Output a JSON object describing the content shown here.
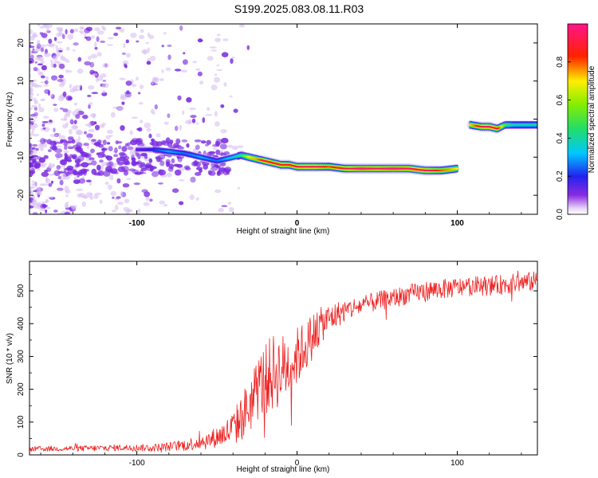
{
  "title": "S199.2025.083.08.11.R03",
  "colors": {
    "snr_line": "#ee2222",
    "spectrogram_noise": "#7a2be0",
    "spectrogram_noise_light": "#d8c0f2"
  },
  "colorbar": {
    "label": "Normalized spectral amplitude",
    "range": [
      0,
      1
    ],
    "ticks": [
      "0.0",
      "0.2",
      "0.4",
      "0.6",
      "0.8"
    ],
    "colormap": "rainbow (purple → blue → cyan → green → yellow → red → magenta)"
  },
  "chart_data": [
    {
      "type": "heatmap",
      "title": "S199.2025.083.08.11.R03",
      "xlabel": "Height of straight line (km)",
      "ylabel": "Frequency (Hz)",
      "xlim": [
        -167,
        150
      ],
      "ylim": [
        -25,
        25
      ],
      "xticks": [
        -100,
        0,
        100
      ],
      "xtick_labels": [
        "-100",
        "0",
        "100"
      ],
      "yticks": [
        -20,
        -10,
        0,
        10,
        20
      ],
      "ytick_labels": [
        "-20",
        "-10",
        "0",
        "10",
        "20"
      ],
      "grid": false,
      "ridge": {
        "description": "dominant frequency trace, normalized amplitude",
        "segments": [
          {
            "x": [
              -100,
              -90,
              -80,
              -70,
              -60,
              -50,
              -40,
              -35,
              -30,
              -25,
              -20,
              -15,
              -10,
              -5,
              0,
              10,
              20,
              30,
              40,
              50,
              60,
              70,
              80,
              90,
              100
            ],
            "y": [
              -8,
              -8,
              -8.5,
              -9,
              -10,
              -11,
              -10,
              -9.5,
              -10,
              -10.5,
              -11,
              -11.5,
              -12,
              -12,
              -12.5,
              -12.5,
              -12.5,
              -13,
              -13,
              -13,
              -13,
              -13,
              -13.5,
              -13.5,
              -13
            ],
            "amplitude": [
              0.15,
              0.2,
              0.3,
              0.25,
              0.3,
              0.25,
              0.35,
              0.45,
              0.7,
              0.75,
              0.9,
              0.85,
              0.9,
              0.85,
              0.9,
              0.95,
              0.8,
              0.9,
              1.0,
              0.95,
              1.0,
              0.95,
              0.95,
              0.8,
              0.7
            ]
          },
          {
            "x": [
              108,
              115,
              120,
              125,
              130,
              135,
              140,
              150
            ],
            "y": [
              -1.5,
              -2,
              -2,
              -2.5,
              -1.5,
              -1.5,
              -1.5,
              -1.5
            ],
            "amplitude": [
              0.7,
              0.9,
              0.95,
              0.9,
              0.5,
              0.4,
              0.4,
              0.4
            ]
          }
        ]
      }
    },
    {
      "type": "line",
      "xlabel": "Height of straight line (km)",
      "ylabel": "SNR (10 * v/v)",
      "xlim": [
        -167,
        150
      ],
      "ylim": [
        0,
        590
      ],
      "xticks": [
        -100,
        0,
        100
      ],
      "xtick_labels": [
        "-100",
        "0",
        "100"
      ],
      "yticks": [
        0,
        100,
        200,
        300,
        400,
        500
      ],
      "ytick_labels": [
        "0",
        "100",
        "200",
        "300",
        "400",
        "500"
      ],
      "grid": false,
      "series": [
        {
          "color": "#ee2222",
          "x": [
            -167,
            -150,
            -130,
            -110,
            -100,
            -90,
            -80,
            -70,
            -60,
            -55,
            -50,
            -45,
            -40,
            -35,
            -30,
            -25,
            -20,
            -15,
            -10,
            -5,
            0,
            5,
            10,
            15,
            20,
            30,
            40,
            50,
            60,
            70,
            80,
            90,
            100,
            110,
            120,
            130,
            140,
            150
          ],
          "y": [
            18,
            19,
            20,
            22,
            22,
            22,
            25,
            30,
            40,
            45,
            55,
            65,
            80,
            110,
            150,
            200,
            230,
            250,
            260,
            275,
            300,
            330,
            365,
            395,
            415,
            440,
            455,
            468,
            478,
            490,
            500,
            505,
            510,
            515,
            515,
            520,
            525,
            530
          ],
          "noise_amplitude": [
            8,
            8,
            9,
            10,
            10,
            12,
            14,
            18,
            24,
            28,
            32,
            40,
            55,
            70,
            90,
            100,
            110,
            120,
            110,
            100,
            90,
            80,
            70,
            55,
            45,
            35,
            30,
            30,
            30,
            30,
            30,
            30,
            30,
            30,
            30,
            30,
            30,
            30
          ]
        }
      ]
    }
  ]
}
